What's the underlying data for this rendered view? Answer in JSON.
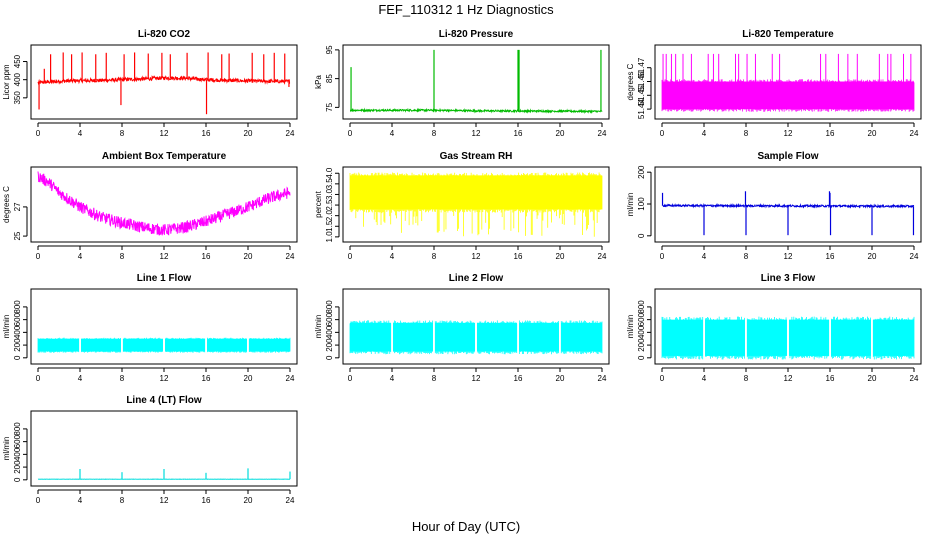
{
  "figure": {
    "title": "FEF_110312  1 Hz Diagnostics",
    "xlabel": "Hour of Day (UTC)"
  },
  "chart_data": [
    {
      "type": "line",
      "title": "Li-820 CO2",
      "ylabel": "Licor ppm",
      "xlim": [
        0,
        24
      ],
      "ylim": [
        300,
        490
      ],
      "x_ticks": [
        "0",
        "4",
        "8",
        "12",
        "16",
        "20",
        "24"
      ],
      "y_ticks": [
        350,
        400,
        450
      ],
      "color": "#ff0000",
      "series": [
        {
          "baseline": [
            [
              0,
              392
            ],
            [
              3,
              397
            ],
            [
              6,
              398
            ],
            [
              8,
              400
            ],
            [
              10,
              402
            ],
            [
              12,
              405
            ],
            [
              14,
              404
            ],
            [
              16,
              400
            ],
            [
              18,
              398
            ],
            [
              21,
              396
            ],
            [
              24,
              395
            ]
          ],
          "noise": 5,
          "spikes_up": [
            [
              0.6,
              430
            ],
            [
              1.2,
              470
            ],
            [
              2.4,
              475
            ],
            [
              3.2,
              470
            ],
            [
              4.2,
              475
            ],
            [
              5.5,
              470
            ],
            [
              6.5,
              474
            ],
            [
              8.2,
              470
            ],
            [
              9.2,
              475
            ],
            [
              10.5,
              472
            ],
            [
              11.8,
              474
            ],
            [
              12.6,
              470
            ],
            [
              14.2,
              474
            ],
            [
              16.2,
              475
            ],
            [
              17.5,
              470
            ],
            [
              18.2,
              472
            ],
            [
              20.4,
              474
            ],
            [
              21.5,
              470
            ],
            [
              22.5,
              474
            ],
            [
              23.5,
              472
            ]
          ],
          "spikes_down": [
            [
              0.1,
              318
            ],
            [
              7.9,
              330
            ],
            [
              16.05,
              305
            ],
            [
              23.9,
              380
            ]
          ]
        }
      ]
    },
    {
      "type": "line",
      "title": "Li-820 Pressure",
      "ylabel": "kPa",
      "xlim": [
        0,
        24
      ],
      "ylim": [
        72,
        96
      ],
      "x_ticks": [
        "0",
        "4",
        "8",
        "12",
        "16",
        "20",
        "24"
      ],
      "y_ticks": [
        75,
        85,
        95
      ],
      "color": "#00bb00",
      "series": [
        {
          "baseline": [
            [
              0,
              74
            ],
            [
              8,
              74
            ],
            [
              12,
              73.8
            ],
            [
              24,
              73.6
            ]
          ],
          "noise": 0.3,
          "spikes_up": [
            [
              0.1,
              89
            ],
            [
              8.0,
              95
            ],
            [
              16.0,
              95
            ],
            [
              16.1,
              95
            ],
            [
              23.9,
              95
            ]
          ],
          "spikes_down": []
        }
      ]
    },
    {
      "type": "area",
      "title": "Li-820 Temperature",
      "ylabel": "degrees C",
      "xlim": [
        0,
        24
      ],
      "ylim": [
        51.435,
        51.485
      ],
      "x_ticks": [
        "0",
        "4",
        "8",
        "12",
        "16",
        "20",
        "24"
      ],
      "y_ticks": [
        "51.44",
        "51.45",
        "51.46",
        "51.47"
      ],
      "color": "#ff00ff",
      "series": [
        {
          "band": [
            51.44,
            51.46
          ],
          "spikes_up": [
            [
              0.1,
              51.48
            ],
            [
              0.4,
              51.48
            ],
            [
              0.9,
              51.48
            ],
            [
              1.3,
              51.48
            ],
            [
              2.0,
              51.48
            ],
            [
              2.8,
              51.48
            ],
            [
              4.4,
              51.48
            ],
            [
              4.9,
              51.48
            ],
            [
              5.4,
              51.48
            ],
            [
              7.0,
              51.48
            ],
            [
              7.3,
              51.48
            ],
            [
              8.1,
              51.48
            ],
            [
              8.9,
              51.48
            ],
            [
              10.5,
              51.48
            ],
            [
              11.2,
              51.48
            ],
            [
              15.1,
              51.48
            ],
            [
              15.6,
              51.48
            ],
            [
              16.8,
              51.48
            ],
            [
              17.7,
              51.48
            ],
            [
              18.6,
              51.48
            ],
            [
              20.7,
              51.48
            ],
            [
              21.5,
              51.48
            ],
            [
              21.8,
              51.48
            ],
            [
              23.0,
              51.48
            ],
            [
              23.7,
              51.48
            ]
          ]
        }
      ]
    },
    {
      "type": "line",
      "title": "Ambient Box Temperature",
      "ylabel": "degrees C",
      "xlim": [
        0,
        24
      ],
      "ylim": [
        24.8,
        29.6
      ],
      "x_ticks": [
        "0",
        "4",
        "8",
        "12",
        "16",
        "20",
        "24"
      ],
      "y_ticks": [
        25,
        27
      ],
      "color": "#ff00ff",
      "series": [
        {
          "baseline": [
            [
              0,
              29.1
            ],
            [
              1,
              28.7
            ],
            [
              2,
              28.0
            ],
            [
              4,
              27.0
            ],
            [
              6,
              26.3
            ],
            [
              8,
              25.9
            ],
            [
              10,
              25.6
            ],
            [
              12,
              25.4
            ],
            [
              14,
              25.6
            ],
            [
              16,
              26.0
            ],
            [
              18,
              26.5
            ],
            [
              20,
              27.0
            ],
            [
              22,
              27.6
            ],
            [
              24,
              28.0
            ]
          ],
          "noise": 0.4,
          "spikes_up": [],
          "spikes_down": []
        }
      ]
    },
    {
      "type": "area",
      "title": "Gas Stream RH",
      "ylabel": "percent",
      "xlim": [
        0,
        24
      ],
      "ylim": [
        0.9,
        4.2
      ],
      "x_ticks": [
        "0",
        "4",
        "8",
        "12",
        "16",
        "20",
        "24"
      ],
      "y_ticks": [
        "1.0",
        "1.5",
        "2.0",
        "2.5",
        "3.0",
        "3.5",
        "4.0"
      ],
      "color": "#ffff00",
      "series": [
        {
          "band": [
            2.3,
            3.9
          ],
          "dips_to": 1.0
        }
      ]
    },
    {
      "type": "line",
      "title": "Sample Flow",
      "ylabel": "ml/min",
      "xlim": [
        0,
        24
      ],
      "ylim": [
        -10,
        210
      ],
      "x_ticks": [
        "0",
        "4",
        "8",
        "12",
        "16",
        "20",
        "24"
      ],
      "y_ticks": [
        0,
        100,
        200
      ],
      "color": "#0000dd",
      "series": [
        {
          "baseline": [
            [
              0,
              95
            ],
            [
              24,
              93
            ]
          ],
          "noise": 3,
          "spikes_up": [
            [
              0.05,
              135
            ],
            [
              7.95,
              140
            ],
            [
              15.95,
              140
            ],
            [
              16.0,
              135
            ]
          ],
          "spikes_down": [
            [
              4.0,
              2
            ],
            [
              8.0,
              2
            ],
            [
              12.0,
              2
            ],
            [
              16.05,
              2
            ],
            [
              20.0,
              2
            ],
            [
              23.95,
              2
            ]
          ]
        }
      ]
    },
    {
      "type": "area",
      "title": "Line 1 Flow",
      "ylabel": "ml/min",
      "xlim": [
        0,
        24
      ],
      "ylim": [
        -50,
        1050
      ],
      "x_ticks": [
        "0",
        "4",
        "8",
        "12",
        "16",
        "20",
        "24"
      ],
      "y_ticks": [
        0,
        200,
        400,
        600,
        800
      ],
      "color": "#00ffff",
      "series": [
        {
          "band": [
            100,
            300
          ],
          "gaps": [
            4,
            8,
            12,
            16,
            20
          ]
        }
      ]
    },
    {
      "type": "area",
      "title": "Line 2 Flow",
      "ylabel": "ml/min",
      "xlim": [
        0,
        24
      ],
      "ylim": [
        -50,
        1050
      ],
      "x_ticks": [
        "0",
        "4",
        "8",
        "12",
        "16",
        "20",
        "24"
      ],
      "y_ticks": [
        0,
        200,
        400,
        600,
        800
      ],
      "color": "#00ffff",
      "series": [
        {
          "band": [
            100,
            550
          ],
          "gaps": [
            4,
            8,
            12,
            16,
            20
          ]
        }
      ]
    },
    {
      "type": "area",
      "title": "Line 3 Flow",
      "ylabel": "ml/min",
      "xlim": [
        0,
        24
      ],
      "ylim": [
        -50,
        1050
      ],
      "x_ticks": [
        "0",
        "4",
        "8",
        "12",
        "16",
        "20",
        "24"
      ],
      "y_ticks": [
        0,
        200,
        400,
        600,
        800
      ],
      "color": "#00ffff",
      "series": [
        {
          "band": [
            30,
            600
          ],
          "gaps": [
            4,
            8,
            12,
            16,
            20
          ]
        }
      ]
    },
    {
      "type": "line",
      "title": "Line 4 (LT) Flow",
      "ylabel": "ml/min",
      "xlim": [
        0,
        24
      ],
      "ylim": [
        -50,
        1050
      ],
      "x_ticks": [
        "0",
        "4",
        "8",
        "12",
        "16",
        "20",
        "24"
      ],
      "y_ticks": [
        0,
        200,
        400,
        600,
        800
      ],
      "color": "#00dddd",
      "series": [
        {
          "baseline": [
            [
              0,
              10
            ],
            [
              24,
              10
            ]
          ],
          "noise": 2,
          "spikes_up": [
            [
              4.0,
              170
            ],
            [
              8.0,
              120
            ],
            [
              12.0,
              170
            ],
            [
              16.0,
              110
            ],
            [
              20.0,
              180
            ],
            [
              24.0,
              130
            ]
          ],
          "spikes_down": []
        }
      ]
    }
  ]
}
